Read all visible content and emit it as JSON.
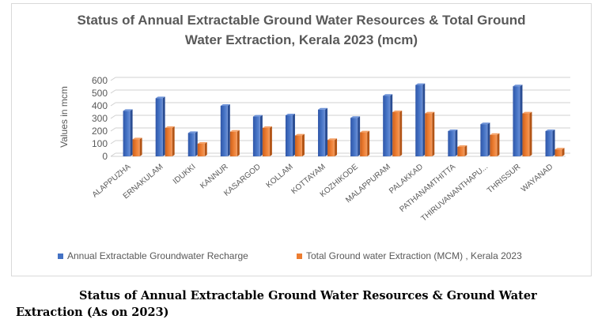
{
  "chart_data": {
    "type": "bar",
    "title_lines": [
      "Status of Annual Extractable Ground Water Resources & Total Ground",
      "Water Extraction,  Kerala 2023 (mcm)"
    ],
    "ylabel": "Values in mcm",
    "ylim": [
      0,
      600
    ],
    "yticks": [
      "0",
      "100",
      "200",
      "300",
      "400",
      "500",
      "600"
    ],
    "categories": [
      "ALAPPUZHA",
      "ERNAKULAM",
      "IDUKKI",
      "KANNUR",
      "KASARGOD",
      "KOLLAM",
      "KOTTAYAM",
      "KOZHIKODE",
      "MALAPPURAM",
      "PALAKKAD",
      "PATHANAMTHITTA",
      "THIRUVANANTHAPU...",
      "THRISSUR",
      "WAYANAD"
    ],
    "series": [
      {
        "name": "Annual Extractable Groundwater Recharge",
        "color": "#4472C4",
        "values": [
          360,
          460,
          185,
          400,
          315,
          325,
          370,
          305,
          480,
          565,
          200,
          255,
          555,
          200
        ]
      },
      {
        "name": "Total Ground water Extraction (MCM) , Kerala 2023",
        "color": "#ED7D31",
        "values": [
          135,
          225,
          100,
          195,
          225,
          165,
          130,
          190,
          350,
          340,
          75,
          170,
          340,
          55
        ]
      }
    ],
    "grid": true,
    "legend_position": "bottom"
  },
  "caption": {
    "line1": "Status of Annual Extractable Ground Water Resources & Ground Water",
    "line2": "Extraction (As on 2023)"
  }
}
